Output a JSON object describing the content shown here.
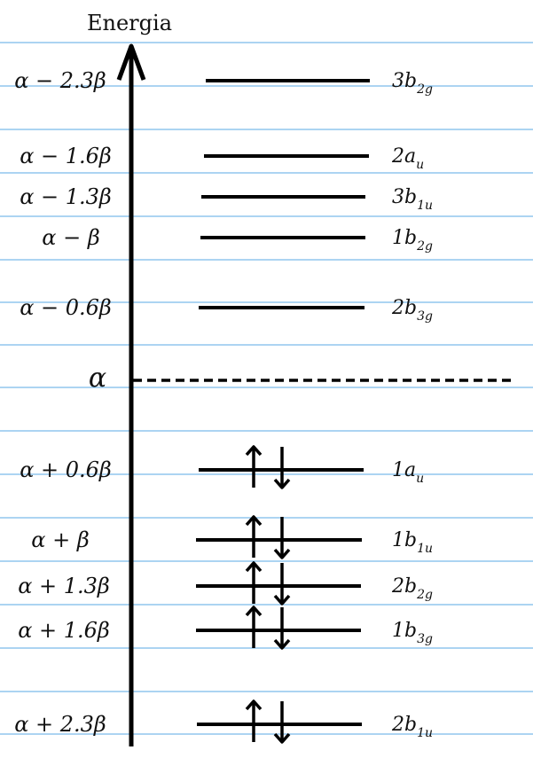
{
  "title": "Energia",
  "alpha_label": "α",
  "levels": [
    {
      "energy": "α − 2.3β",
      "symbol": "3b",
      "sub": "2g",
      "electrons": 0
    },
    {
      "energy": "α − 1.6β",
      "symbol": "2a",
      "sub": "u",
      "electrons": 0
    },
    {
      "energy": "α − 1.3β",
      "symbol": "3b",
      "sub": "1u",
      "electrons": 0
    },
    {
      "energy": "α − β",
      "symbol": "1b",
      "sub": "2g",
      "electrons": 0
    },
    {
      "energy": "α − 0.6β",
      "symbol": "2b",
      "sub": "3g",
      "electrons": 0
    },
    {
      "energy": "α + 0.6β",
      "symbol": "1a",
      "sub": "u",
      "electrons": 2
    },
    {
      "energy": "α + β",
      "symbol": "1b",
      "sub": "1u",
      "electrons": 2
    },
    {
      "energy": "α + 1.3β",
      "symbol": "2b",
      "sub": "2g",
      "electrons": 2
    },
    {
      "energy": "α + 1.6β",
      "symbol": "1b",
      "sub": "3g",
      "electrons": 2
    },
    {
      "energy": "α + 2.3β",
      "symbol": "2b",
      "sub": "1u",
      "electrons": 2
    }
  ],
  "colors": {
    "rule": "#5aa8e6",
    "ink": "#000000"
  }
}
